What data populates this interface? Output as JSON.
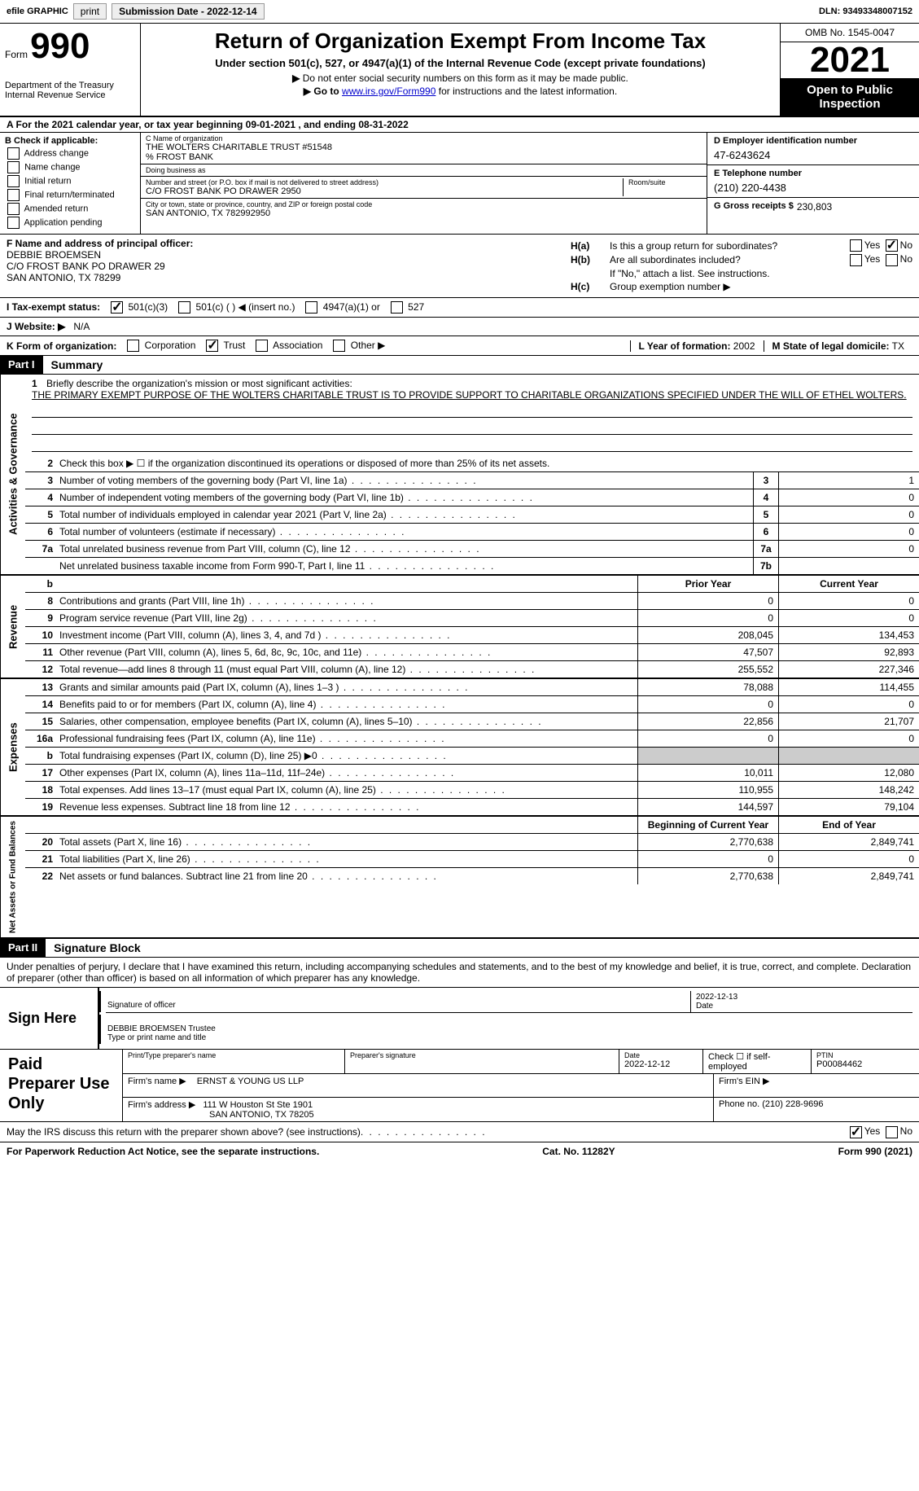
{
  "topbar": {
    "efile_label": "efile GRAPHIC",
    "print_btn": "print",
    "submission_label": "Submission Date - 2022-12-14",
    "dln": "DLN: 93493348007152"
  },
  "header": {
    "form_prefix": "Form",
    "form_number": "990",
    "department": "Department of the Treasury",
    "irs": "Internal Revenue Service",
    "title": "Return of Organization Exempt From Income Tax",
    "subtitle": "Under section 501(c), 527, or 4947(a)(1) of the Internal Revenue Code (except private foundations)",
    "note1_prefix": "▶ ",
    "note1": "Do not enter social security numbers on this form as it may be made public.",
    "note2_prefix": "▶ Go to ",
    "note2_link": "www.irs.gov/Form990",
    "note2_suffix": " for instructions and the latest information.",
    "omb": "OMB No. 1545-0047",
    "year": "2021",
    "inspection1": "Open to Public",
    "inspection2": "Inspection"
  },
  "row_a": "A For the 2021 calendar year, or tax year beginning 09-01-2021    , and ending 08-31-2022",
  "col_b": {
    "header": "B Check if applicable:",
    "items": [
      "Address change",
      "Name change",
      "Initial return",
      "Final return/terminated",
      "Amended return",
      "Application pending"
    ]
  },
  "col_c": {
    "name_label": "C Name of organization",
    "name": "THE WOLTERS CHARITABLE TRUST #51548",
    "care_of": "% FROST BANK",
    "dba_label": "Doing business as",
    "dba": "",
    "street_label": "Number and street (or P.O. box if mail is not delivered to street address)",
    "street": "C/O FROST BANK PO DRAWER 2950",
    "room_label": "Room/suite",
    "city_label": "City or town, state or province, country, and ZIP or foreign postal code",
    "city": "SAN ANTONIO, TX  782992950"
  },
  "col_d": {
    "ein_label": "D Employer identification number",
    "ein": "47-6243624",
    "phone_label": "E Telephone number",
    "phone": "(210) 220-4438",
    "gross_label": "G Gross receipts $",
    "gross": "230,803"
  },
  "col_f": {
    "label": "F Name and address of principal officer:",
    "name": "DEBBIE BROEMSEN",
    "addr1": "C/O FROST BANK PO DRAWER 29",
    "addr2": "SAN ANTONIO, TX  78299"
  },
  "col_h": {
    "ha_label": "H(a)",
    "ha_text": "Is this a group return for subordinates?",
    "hb_label": "H(b)",
    "hb_text": "Are all subordinates included?",
    "hb_note": "If \"No,\" attach a list. See instructions.",
    "hc_label": "H(c)",
    "hc_text": "Group exemption number ▶",
    "yes": "Yes",
    "no": "No"
  },
  "status": {
    "label": "I   Tax-exempt status:",
    "opt1": "501(c)(3)",
    "opt2": "501(c) (   ) ◀ (insert no.)",
    "opt3": "4947(a)(1) or",
    "opt4": "527"
  },
  "website": {
    "label": "J   Website: ▶",
    "value": "N/A"
  },
  "row_k": {
    "label": "K Form of organization:",
    "corp": "Corporation",
    "trust": "Trust",
    "assoc": "Association",
    "other": "Other ▶",
    "l_label": "L Year of formation:",
    "l_value": "2002",
    "m_label": "M State of legal domicile:",
    "m_value": "TX"
  },
  "part1": {
    "header": "Part I",
    "title": "Summary"
  },
  "summary": {
    "line1_label": "1",
    "line1_text": "Briefly describe the organization's mission or most significant activities:",
    "mission": "THE PRIMARY EXEMPT PURPOSE OF THE WOLTERS CHARITABLE TRUST IS TO PROVIDE SUPPORT TO CHARITABLE ORGANIZATIONS SPECIFIED UNDER THE WILL OF ETHEL WOLTERS.",
    "line2_text": "Check this box ▶ ☐  if the organization discontinued its operations or disposed of more than 25% of its net assets.",
    "lines": [
      {
        "num": "3",
        "text": "Number of voting members of the governing body (Part VI, line 1a)",
        "box": "3",
        "val": "1"
      },
      {
        "num": "4",
        "text": "Number of independent voting members of the governing body (Part VI, line 1b)",
        "box": "4",
        "val": "0"
      },
      {
        "num": "5",
        "text": "Total number of individuals employed in calendar year 2021 (Part V, line 2a)",
        "box": "5",
        "val": "0"
      },
      {
        "num": "6",
        "text": "Total number of volunteers (estimate if necessary)",
        "box": "6",
        "val": "0"
      },
      {
        "num": "7a",
        "text": "Total unrelated business revenue from Part VIII, column (C), line 12",
        "box": "7a",
        "val": "0"
      },
      {
        "num": "",
        "text": "Net unrelated business taxable income from Form 990-T, Part I, line 11",
        "box": "7b",
        "val": ""
      }
    ]
  },
  "revenue": {
    "side": "Revenue",
    "prior_header": "Prior Year",
    "current_header": "Current Year",
    "lines": [
      {
        "num": "8",
        "text": "Contributions and grants (Part VIII, line 1h)",
        "prior": "0",
        "curr": "0"
      },
      {
        "num": "9",
        "text": "Program service revenue (Part VIII, line 2g)",
        "prior": "0",
        "curr": "0"
      },
      {
        "num": "10",
        "text": "Investment income (Part VIII, column (A), lines 3, 4, and 7d )",
        "prior": "208,045",
        "curr": "134,453"
      },
      {
        "num": "11",
        "text": "Other revenue (Part VIII, column (A), lines 5, 6d, 8c, 9c, 10c, and 11e)",
        "prior": "47,507",
        "curr": "92,893"
      },
      {
        "num": "12",
        "text": "Total revenue—add lines 8 through 11 (must equal Part VIII, column (A), line 12)",
        "prior": "255,552",
        "curr": "227,346"
      }
    ]
  },
  "expenses": {
    "side": "Expenses",
    "lines": [
      {
        "num": "13",
        "text": "Grants and similar amounts paid (Part IX, column (A), lines 1–3 )",
        "prior": "78,088",
        "curr": "114,455"
      },
      {
        "num": "14",
        "text": "Benefits paid to or for members (Part IX, column (A), line 4)",
        "prior": "0",
        "curr": "0"
      },
      {
        "num": "15",
        "text": "Salaries, other compensation, employee benefits (Part IX, column (A), lines 5–10)",
        "prior": "22,856",
        "curr": "21,707"
      },
      {
        "num": "16a",
        "text": "Professional fundraising fees (Part IX, column (A), line 11e)",
        "prior": "0",
        "curr": "0"
      },
      {
        "num": "b",
        "text": "Total fundraising expenses (Part IX, column (D), line 25) ▶0",
        "prior": "shaded",
        "curr": "shaded"
      },
      {
        "num": "17",
        "text": "Other expenses (Part IX, column (A), lines 11a–11d, 11f–24e)",
        "prior": "10,011",
        "curr": "12,080"
      },
      {
        "num": "18",
        "text": "Total expenses. Add lines 13–17 (must equal Part IX, column (A), line 25)",
        "prior": "110,955",
        "curr": "148,242"
      },
      {
        "num": "19",
        "text": "Revenue less expenses. Subtract line 18 from line 12",
        "prior": "144,597",
        "curr": "79,104"
      }
    ]
  },
  "netassets": {
    "side": "Net Assets or Fund Balances",
    "begin_header": "Beginning of Current Year",
    "end_header": "End of Year",
    "lines": [
      {
        "num": "20",
        "text": "Total assets (Part X, line 16)",
        "prior": "2,770,638",
        "curr": "2,849,741"
      },
      {
        "num": "21",
        "text": "Total liabilities (Part X, line 26)",
        "prior": "0",
        "curr": "0"
      },
      {
        "num": "22",
        "text": "Net assets or fund balances. Subtract line 21 from line 20",
        "prior": "2,770,638",
        "curr": "2,849,741"
      }
    ]
  },
  "governance_side": "Activities & Governance",
  "part2": {
    "header": "Part II",
    "title": "Signature Block",
    "declaration": "Under penalties of perjury, I declare that I have examined this return, including accompanying schedules and statements, and to the best of my knowledge and belief, it is true, correct, and complete. Declaration of preparer (other than officer) is based on all information of which preparer has any knowledge."
  },
  "sign": {
    "label": "Sign Here",
    "sig_label": "Signature of officer",
    "date_label": "Date",
    "date_value": "2022-12-13",
    "name": "DEBBIE BROEMSEN  Trustee",
    "name_label": "Type or print name and title"
  },
  "preparer": {
    "label": "Paid Preparer Use Only",
    "print_label": "Print/Type preparer's name",
    "print_value": "",
    "sig_label": "Preparer's signature",
    "date_label": "Date",
    "date_value": "2022-12-12",
    "check_label": "Check ☐ if self-employed",
    "ptin_label": "PTIN",
    "ptin_value": "P00084462",
    "firm_name_label": "Firm's name      ▶",
    "firm_name": "ERNST & YOUNG US LLP",
    "firm_ein_label": "Firm's EIN ▶",
    "firm_ein": "",
    "firm_addr_label": "Firm's address ▶",
    "firm_addr1": "111 W Houston St Ste 1901",
    "firm_addr2": "SAN ANTONIO, TX  78205",
    "phone_label": "Phone no.",
    "phone": "(210) 228-9696"
  },
  "footer": {
    "discuss": "May the IRS discuss this return with the preparer shown above? (see instructions)",
    "yes": "Yes",
    "no": "No",
    "paperwork": "For Paperwork Reduction Act Notice, see the separate instructions.",
    "catalog": "Cat. No. 11282Y",
    "form_ref": "Form 990 (2021)"
  }
}
